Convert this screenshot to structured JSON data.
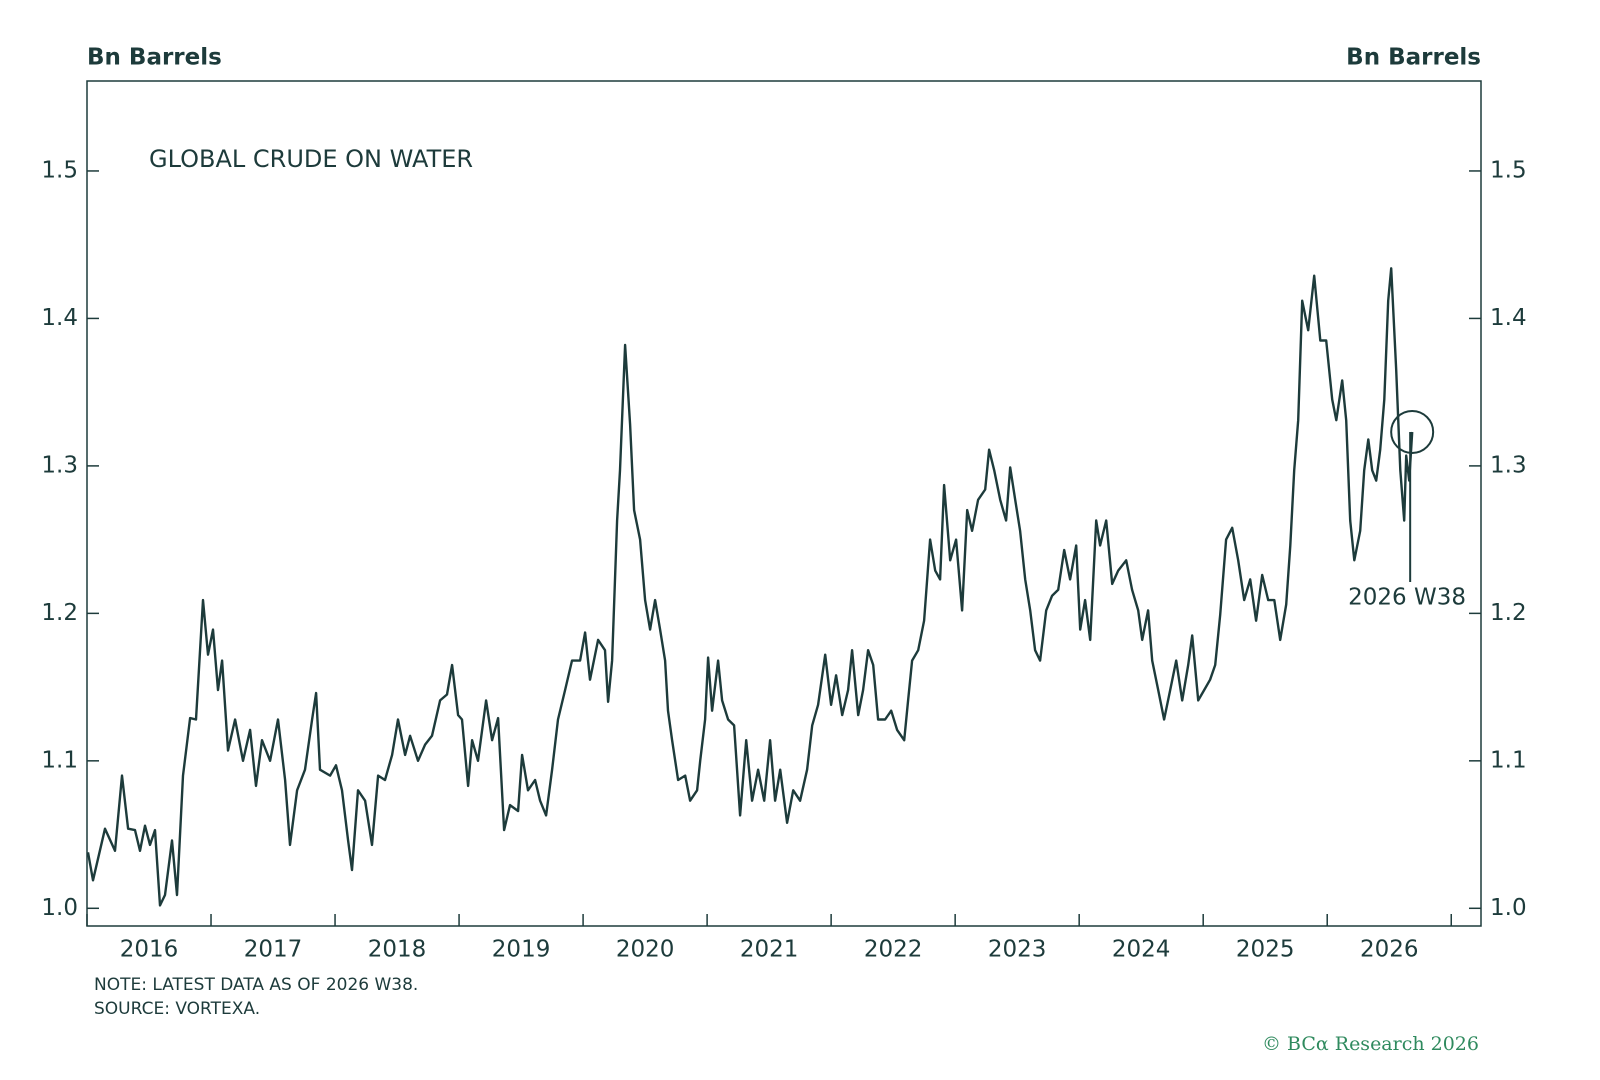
{
  "chart_data": {
    "type": "line",
    "title": "GLOBAL CRUDE ON WATER",
    "y_label": "Bn Barrels",
    "y2_label": "Bn Barrels",
    "annotation": "2026 W38",
    "note": "NOTE: LATEST DATA AS OF 2026 W38.",
    "source": "SOURCE: VORTEXA.",
    "credit": "© BCα Research 2026",
    "color": "#1d3b3b",
    "xlim": [
      2016,
      2027.24
    ],
    "xticks": [
      {
        "value": 2016.5,
        "label": "2016"
      },
      {
        "value": 2017.5,
        "label": "2017"
      },
      {
        "value": 2018.5,
        "label": "2018"
      },
      {
        "value": 2019.5,
        "label": "2019"
      },
      {
        "value": 2020.5,
        "label": "2020"
      },
      {
        "value": 2021.5,
        "label": "2021"
      },
      {
        "value": 2022.5,
        "label": "2022"
      },
      {
        "value": 2023.5,
        "label": "2023"
      },
      {
        "value": 2024.5,
        "label": "2024"
      },
      {
        "value": 2025.5,
        "label": "2025"
      },
      {
        "value": 2026.5,
        "label": "2026"
      }
    ],
    "x_minor_ticks": [
      2016,
      2017,
      2018,
      2019,
      2020,
      2021,
      2022,
      2023,
      2024,
      2025,
      2026,
      2027
    ],
    "ylim": [
      0.988,
      1.561
    ],
    "yticks": [
      {
        "value": 1.0,
        "label": "1.0"
      },
      1.1,
      1.2,
      1.3,
      1.4,
      1.5
    ],
    "y2lim": [
      0.988,
      1.561
    ],
    "y2ticks": [
      {
        "value": 1.0,
        "label": "1.0"
      },
      1.1,
      1.2,
      1.3,
      1.4,
      1.5
    ],
    "x": [
      2016.008,
      2016.048,
      2016.145,
      2016.226,
      2016.282,
      2016.331,
      2016.387,
      2016.427,
      2016.468,
      2016.508,
      2016.548,
      2016.589,
      2016.629,
      2016.685,
      2016.726,
      2016.774,
      2016.831,
      2016.879,
      2016.935,
      2016.976,
      2017.016,
      2017.056,
      2017.089,
      2017.137,
      2017.194,
      2017.258,
      2017.315,
      2017.363,
      2017.411,
      2017.476,
      2017.54,
      2017.597,
      2017.637,
      2017.694,
      2017.758,
      2017.815,
      2017.847,
      2017.879,
      2017.96,
      2018.008,
      2018.056,
      2018.105,
      2018.137,
      2018.185,
      2018.242,
      2018.298,
      2018.347,
      2018.403,
      2018.46,
      2018.508,
      2018.565,
      2018.605,
      2018.669,
      2018.726,
      2018.782,
      2018.847,
      2018.903,
      2018.944,
      2018.992,
      2019.024,
      2019.073,
      2019.105,
      2019.153,
      2019.218,
      2019.266,
      2019.315,
      2019.363,
      2019.411,
      2019.476,
      2019.508,
      2019.556,
      2019.613,
      2019.653,
      2019.702,
      2019.75,
      2019.798,
      2019.855,
      2019.911,
      2019.976,
      2020.016,
      2020.056,
      2020.121,
      2020.177,
      2020.202,
      2020.234,
      2020.274,
      2020.298,
      2020.339,
      2020.379,
      2020.411,
      2020.46,
      2020.5,
      2020.54,
      2020.581,
      2020.621,
      2020.661,
      2020.685,
      2020.718,
      2020.766,
      2020.823,
      2020.863,
      2020.919,
      2020.944,
      2020.984,
      2021.008,
      2021.04,
      2021.089,
      2021.121,
      2021.169,
      2021.218,
      2021.266,
      2021.315,
      2021.363,
      2021.411,
      2021.46,
      2021.508,
      2021.548,
      2021.589,
      2021.645,
      2021.694,
      2021.75,
      2021.806,
      2021.847,
      2021.895,
      2021.952,
      2022.0,
      2022.04,
      2022.089,
      2022.137,
      2022.169,
      2022.218,
      2022.258,
      2022.298,
      2022.339,
      2022.379,
      2022.435,
      2022.484,
      2022.532,
      2022.589,
      2022.621,
      2022.653,
      2022.702,
      2022.75,
      2022.798,
      2022.839,
      2022.879,
      2022.911,
      2022.96,
      2023.008,
      2023.056,
      2023.097,
      2023.137,
      2023.185,
      2023.242,
      2023.274,
      2023.315,
      2023.363,
      2023.411,
      2023.444,
      2023.484,
      2023.524,
      2023.565,
      2023.605,
      2023.645,
      2023.685,
      2023.734,
      2023.782,
      2023.831,
      2023.879,
      2023.927,
      2023.976,
      2024.008,
      2024.048,
      2024.089,
      2024.137,
      2024.169,
      2024.218,
      2024.266,
      2024.315,
      2024.379,
      2024.427,
      2024.476,
      2024.508,
      2024.556,
      2024.589,
      2024.637,
      2024.685,
      2024.734,
      2024.782,
      2024.831,
      2024.879,
      2024.911,
      2024.96,
      2025.008,
      2025.056,
      2025.097,
      2025.137,
      2025.185,
      2025.234,
      2025.282,
      2025.331,
      2025.379,
      2025.427,
      2025.476,
      2025.524,
      2025.573,
      2025.621,
      2025.669,
      2025.702,
      2025.734,
      2025.766,
      2025.798,
      2025.847,
      2025.895,
      2025.944,
      2025.992,
      2026.04,
      2026.073,
      2026.121,
      2026.153,
      2026.185,
      2026.218,
      2026.266,
      2026.298,
      2026.331,
      2026.363,
      2026.395,
      2026.427,
      2026.46,
      2026.492,
      2026.516,
      2026.556,
      2026.589,
      2026.621,
      2026.637,
      2026.661,
      2026.685
    ],
    "values": [
      1.038,
      1.019,
      1.054,
      1.039,
      1.09,
      1.054,
      1.053,
      1.039,
      1.056,
      1.043,
      1.053,
      1.002,
      1.009,
      1.046,
      1.009,
      1.09,
      1.129,
      1.128,
      1.209,
      1.172,
      1.189,
      1.148,
      1.168,
      1.107,
      1.128,
      1.1,
      1.121,
      1.083,
      1.114,
      1.1,
      1.128,
      1.087,
      1.043,
      1.08,
      1.094,
      1.128,
      1.146,
      1.094,
      1.09,
      1.097,
      1.08,
      1.046,
      1.026,
      1.08,
      1.073,
      1.043,
      1.09,
      1.087,
      1.104,
      1.128,
      1.104,
      1.117,
      1.1,
      1.111,
      1.117,
      1.141,
      1.145,
      1.165,
      1.131,
      1.128,
      1.083,
      1.114,
      1.1,
      1.141,
      1.114,
      1.129,
      1.053,
      1.07,
      1.066,
      1.104,
      1.08,
      1.087,
      1.073,
      1.063,
      1.094,
      1.128,
      1.148,
      1.168,
      1.168,
      1.187,
      1.155,
      1.182,
      1.175,
      1.14,
      1.168,
      1.263,
      1.297,
      1.382,
      1.328,
      1.27,
      1.25,
      1.209,
      1.189,
      1.209,
      1.189,
      1.168,
      1.134,
      1.114,
      1.087,
      1.09,
      1.073,
      1.08,
      1.1,
      1.128,
      1.17,
      1.134,
      1.168,
      1.141,
      1.128,
      1.124,
      1.063,
      1.114,
      1.073,
      1.094,
      1.073,
      1.114,
      1.073,
      1.094,
      1.058,
      1.08,
      1.073,
      1.094,
      1.124,
      1.138,
      1.172,
      1.138,
      1.158,
      1.131,
      1.148,
      1.175,
      1.131,
      1.148,
      1.175,
      1.165,
      1.128,
      1.128,
      1.134,
      1.121,
      1.114,
      1.141,
      1.168,
      1.175,
      1.195,
      1.25,
      1.229,
      1.223,
      1.287,
      1.236,
      1.25,
      1.202,
      1.27,
      1.256,
      1.277,
      1.284,
      1.311,
      1.297,
      1.277,
      1.263,
      1.299,
      1.277,
      1.256,
      1.223,
      1.202,
      1.175,
      1.168,
      1.202,
      1.212,
      1.216,
      1.243,
      1.223,
      1.246,
      1.189,
      1.209,
      1.182,
      1.263,
      1.246,
      1.263,
      1.22,
      1.229,
      1.236,
      1.216,
      1.202,
      1.182,
      1.202,
      1.168,
      1.148,
      1.128,
      1.148,
      1.168,
      1.141,
      1.165,
      1.185,
      1.141,
      1.148,
      1.155,
      1.165,
      1.199,
      1.25,
      1.258,
      1.236,
      1.209,
      1.223,
      1.195,
      1.226,
      1.209,
      1.209,
      1.182,
      1.206,
      1.246,
      1.297,
      1.331,
      1.412,
      1.392,
      1.429,
      1.385,
      1.385,
      1.345,
      1.331,
      1.358,
      1.331,
      1.263,
      1.236,
      1.256,
      1.297,
      1.318,
      1.297,
      1.29,
      1.311,
      1.345,
      1.412,
      1.434,
      1.365,
      1.297,
      1.263,
      1.307,
      1.29,
      1.323
    ]
  }
}
